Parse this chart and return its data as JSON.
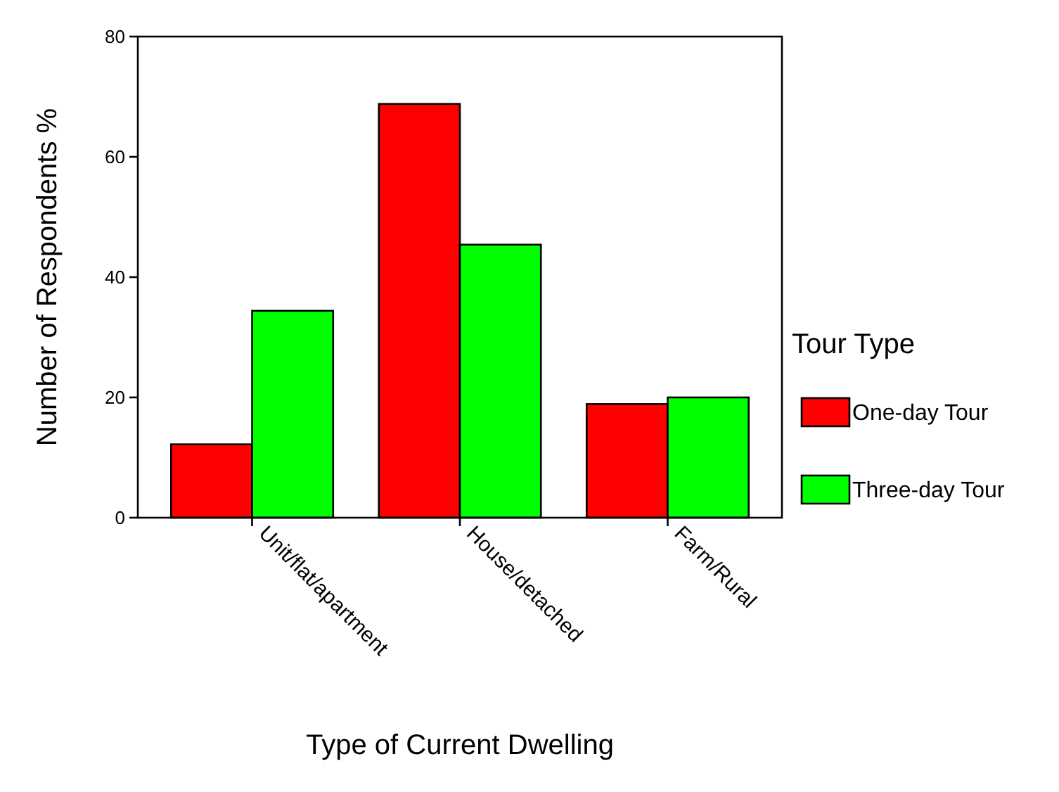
{
  "chart_data": {
    "type": "bar",
    "xlabel": "Type of Current Dwelling",
    "ylabel": "Number of Respondents %",
    "legend_title": "Tour Type",
    "categories": [
      "Unit/flat/apartment",
      "House/detached",
      "Farm/Rural"
    ],
    "series": [
      {
        "name": "One-day Tour",
        "color": "#ff0000",
        "values": [
          12.2,
          68.8,
          18.9
        ]
      },
      {
        "name": "Three-day Tour",
        "color": "#00ff00",
        "values": [
          34.4,
          45.4,
          20.0
        ]
      }
    ],
    "ylim": [
      0,
      80
    ],
    "yticks": [
      0,
      20,
      40,
      60,
      80
    ],
    "grid": false,
    "legend": "right"
  }
}
